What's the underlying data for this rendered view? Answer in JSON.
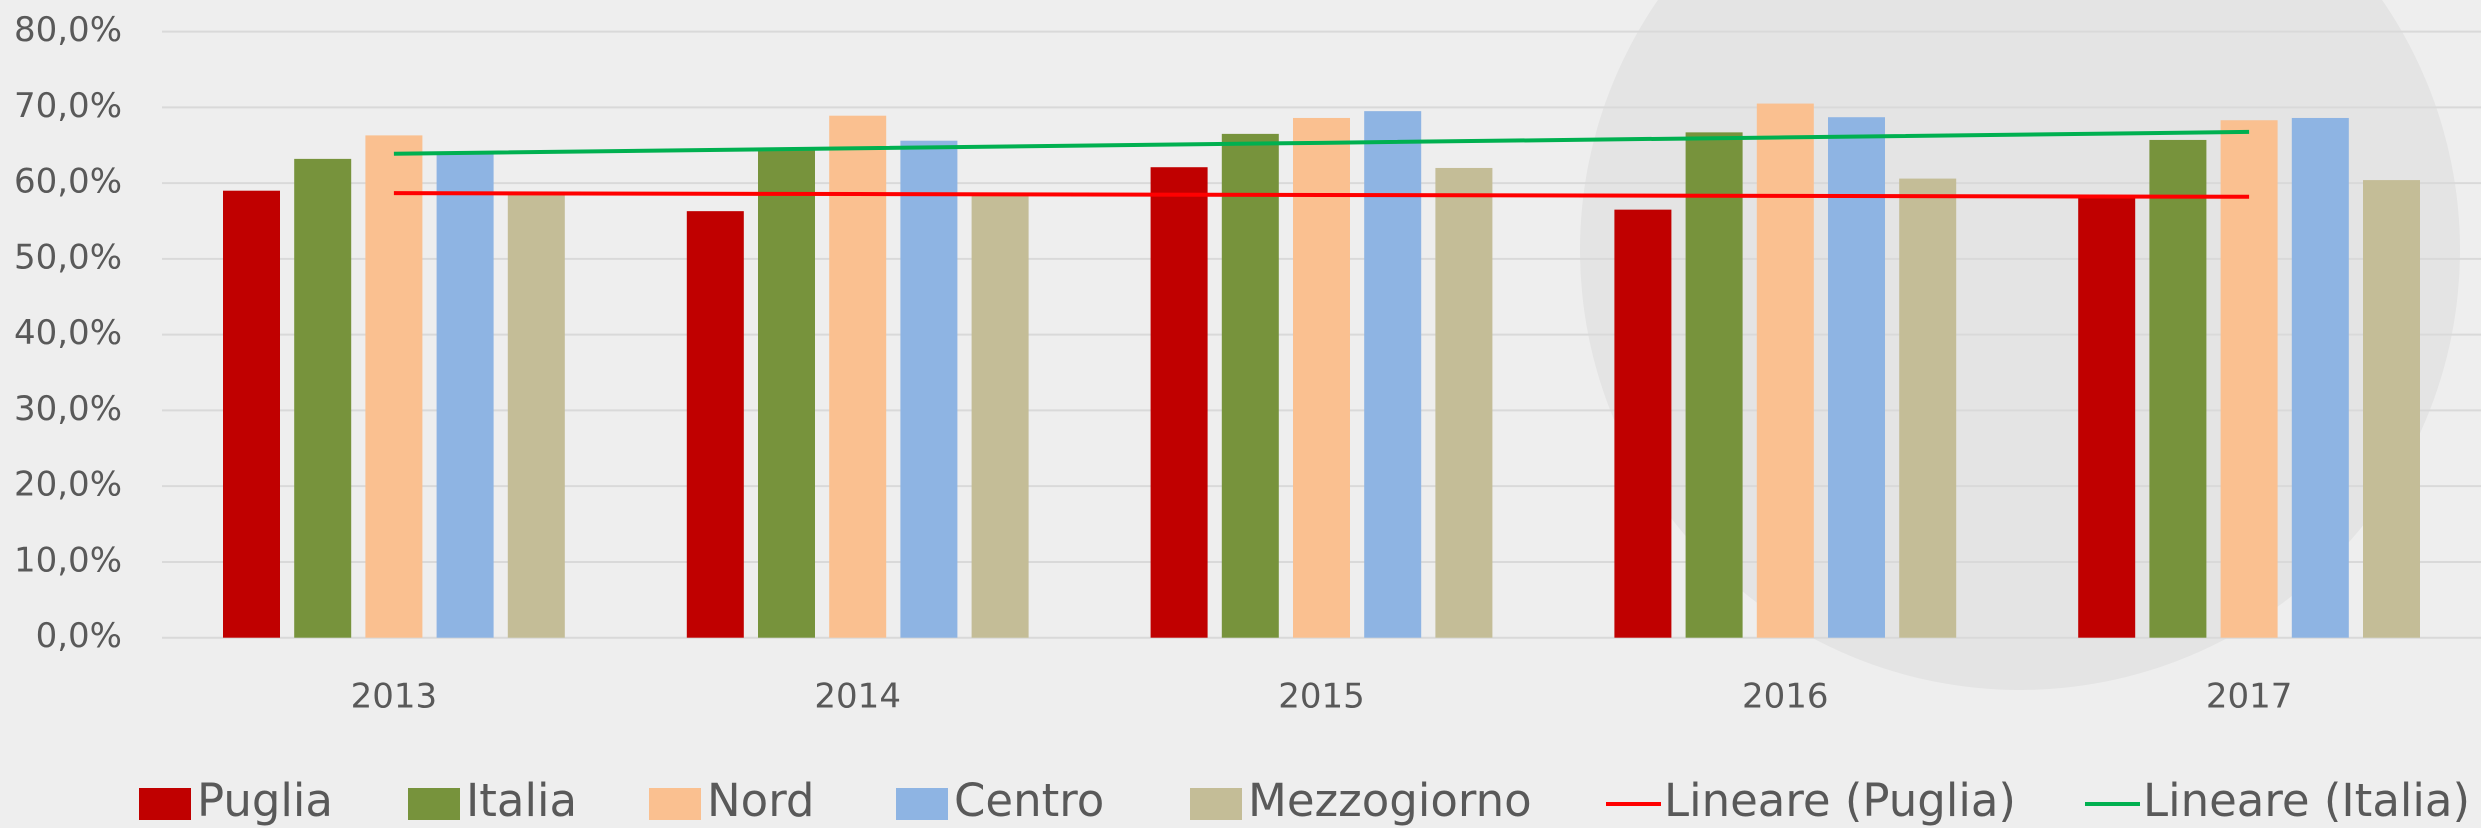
{
  "chart_data": {
    "type": "bar",
    "categories": [
      "2013",
      "2014",
      "2015",
      "2016",
      "2017"
    ],
    "series": [
      {
        "name": "Puglia",
        "color": "#c00000",
        "values": [
          59.0,
          56.3,
          62.1,
          56.5,
          58.3
        ]
      },
      {
        "name": "Italia",
        "color": "#77933c",
        "values": [
          63.2,
          64.5,
          66.5,
          66.7,
          65.7
        ]
      },
      {
        "name": "Nord",
        "color": "#fac090",
        "values": [
          66.3,
          68.9,
          68.6,
          70.5,
          68.3
        ]
      },
      {
        "name": "Centro",
        "color": "#8eb4e3",
        "values": [
          64.0,
          65.6,
          69.5,
          68.7,
          68.6
        ]
      },
      {
        "name": "Mezzogiorno",
        "color": "#c4bd97",
        "values": [
          58.6,
          58.3,
          62.0,
          60.6,
          60.4
        ]
      },
      {
        "name": "Lineare (Puglia)",
        "type": "line",
        "color": "#ff0000",
        "values": [
          58.68,
          58.56,
          58.44,
          58.32,
          58.2
        ]
      },
      {
        "name": "Lineare (Italia)",
        "type": "line",
        "color": "#00b050",
        "values": [
          63.88,
          64.6,
          65.32,
          66.04,
          66.76
        ]
      }
    ],
    "ylim": [
      0,
      80
    ],
    "yticks": [
      {
        "value": 0,
        "label": "0,0%"
      },
      {
        "value": 10,
        "label": "10,0%"
      },
      {
        "value": 20,
        "label": "20,0%"
      },
      {
        "value": 30,
        "label": "30,0%"
      },
      {
        "value": 40,
        "label": "40,0%"
      },
      {
        "value": 50,
        "label": "50,0%"
      },
      {
        "value": 60,
        "label": "60,0%"
      },
      {
        "value": 70,
        "label": "70,0%"
      },
      {
        "value": 80,
        "label": "80,0%"
      }
    ],
    "grid": true,
    "legend": "bottom"
  }
}
